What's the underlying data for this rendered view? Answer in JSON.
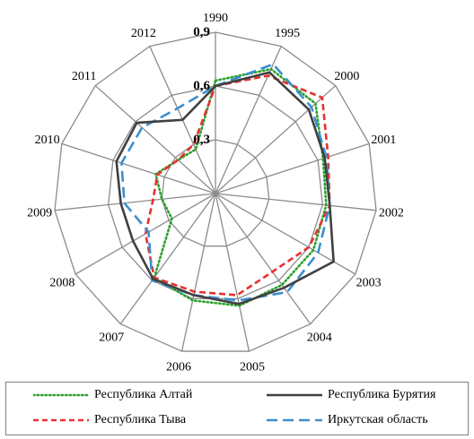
{
  "chart_data": {
    "type": "radar",
    "categories": [
      "1990",
      "1995",
      "2000",
      "2001",
      "2002",
      "2003",
      "2004",
      "2005",
      "2006",
      "2007",
      "2008",
      "2009",
      "2010",
      "2011",
      "2012"
    ],
    "scale_labels": [
      "0,3",
      "0,6",
      "0,9"
    ],
    "scale_values": [
      0.3,
      0.6,
      0.9
    ],
    "rlim": [
      0.0,
      0.9
    ],
    "grid": true,
    "legend_position": "bottom",
    "series": [
      {
        "name": "Республика Алтай",
        "color": "#2ca02c",
        "style": "dotted",
        "values": [
          0.63,
          0.76,
          0.75,
          0.63,
          0.62,
          0.63,
          0.63,
          0.64,
          0.61,
          0.58,
          0.28,
          0.3,
          0.35,
          0.28,
          0.27
        ]
      },
      {
        "name": "Республика Бурятия",
        "color": "#404040",
        "style": "solid",
        "values": [
          0.6,
          0.74,
          0.7,
          0.64,
          0.64,
          0.76,
          0.65,
          0.63,
          0.58,
          0.59,
          0.53,
          0.53,
          0.58,
          0.59,
          0.45
        ]
      },
      {
        "name": "Республика Тыва",
        "color": "#e83030",
        "style": "dashed",
        "values": [
          0.6,
          0.72,
          0.8,
          0.66,
          0.64,
          0.6,
          0.54,
          0.58,
          0.56,
          0.58,
          0.45,
          0.35,
          0.34,
          0.28,
          0.3
        ]
      },
      {
        "name": "Иркутская область",
        "color": "#3a8fd0",
        "style": "dashed",
        "values": [
          0.6,
          0.79,
          0.72,
          0.65,
          0.64,
          0.66,
          0.68,
          0.61,
          0.58,
          0.6,
          0.43,
          0.51,
          0.55,
          0.55,
          0.52
        ]
      }
    ]
  }
}
